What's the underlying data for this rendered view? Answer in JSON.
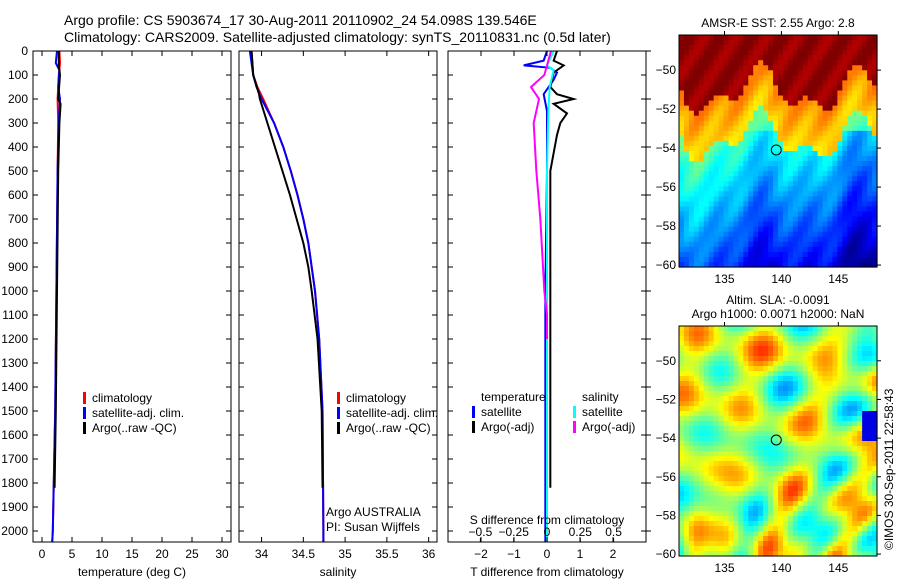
{
  "chart_data": [
    {
      "type": "line",
      "id": "temperature",
      "xlabel": "temperature (deg C)",
      "xlim": [
        -1.5,
        31.5
      ],
      "ylim": [
        0,
        2045
      ],
      "xticks": [
        0,
        5,
        10,
        15,
        20,
        25,
        30
      ],
      "yticks": [
        0,
        100,
        200,
        300,
        400,
        500,
        600,
        700,
        800,
        900,
        1000,
        1100,
        1200,
        1300,
        1400,
        1500,
        1600,
        1700,
        1800,
        1900,
        2000
      ],
      "legend": [
        "climatology",
        "satellite-adj. clim.",
        "Argo(..raw -QC)"
      ],
      "series": [
        {
          "name": "climatology",
          "color": "#ff0000",
          "points": [
            [
              0,
              2.9
            ],
            [
              50,
              3.0
            ],
            [
              100,
              2.8
            ],
            [
              200,
              2.6
            ],
            [
              300,
              2.7
            ],
            [
              500,
              2.6
            ],
            [
              1000,
              2.4
            ],
            [
              1500,
              2.2
            ],
            [
              2000,
              1.8
            ],
            [
              2045,
              1.7
            ]
          ]
        },
        {
          "name": "satellite-adj. clim.",
          "color": "#0000ff",
          "points": [
            [
              0,
              2.5
            ],
            [
              50,
              2.3
            ],
            [
              80,
              2.9
            ],
            [
              150,
              2.7
            ],
            [
              200,
              3.0
            ],
            [
              300,
              2.8
            ],
            [
              500,
              2.6
            ],
            [
              1000,
              2.4
            ],
            [
              1500,
              2.2
            ],
            [
              2000,
              1.8
            ],
            [
              2045,
              1.7
            ]
          ]
        },
        {
          "name": "Argo(..raw -QC)",
          "color": "#000000",
          "points": [
            [
              0,
              2.8
            ],
            [
              60,
              2.8
            ],
            [
              100,
              3.0
            ],
            [
              200,
              2.7
            ],
            [
              220,
              3.1
            ],
            [
              300,
              2.9
            ],
            [
              500,
              2.7
            ],
            [
              1000,
              2.5
            ],
            [
              1500,
              2.3
            ],
            [
              1820,
              2.1
            ]
          ]
        }
      ]
    },
    {
      "type": "line",
      "id": "salinity",
      "xlabel": "salinity",
      "xlim": [
        33.73,
        36.1
      ],
      "ylim": [
        0,
        2045
      ],
      "xticks": [
        34,
        34.5,
        35,
        35.5,
        36
      ],
      "legend": [
        "climatology",
        "satellite-adj. clim.",
        "Argo(..raw -QC)"
      ],
      "annotation": [
        "Argo AUSTRALIA",
        "PI: Susan Wijffels"
      ],
      "series": [
        {
          "name": "climatology",
          "color": "#ff0000",
          "points": [
            [
              0,
              33.88
            ],
            [
              100,
              33.9
            ],
            [
              150,
              33.95
            ],
            [
              200,
              34.02
            ],
            [
              300,
              34.15
            ],
            [
              400,
              34.26
            ],
            [
              500,
              34.35
            ],
            [
              600,
              34.43
            ],
            [
              700,
              34.5
            ],
            [
              800,
              34.56
            ],
            [
              1000,
              34.64
            ],
            [
              1200,
              34.69
            ],
            [
              1500,
              34.73
            ],
            [
              2000,
              34.74
            ],
            [
              2045,
              34.74
            ]
          ]
        },
        {
          "name": "satellite-adj. clim.",
          "color": "#0000ff",
          "points": [
            [
              0,
              33.86
            ],
            [
              100,
              33.9
            ],
            [
              150,
              33.94
            ],
            [
              200,
              34.0
            ],
            [
              300,
              34.15
            ],
            [
              400,
              34.26
            ],
            [
              500,
              34.35
            ],
            [
              600,
              34.43
            ],
            [
              700,
              34.5
            ],
            [
              800,
              34.56
            ],
            [
              1000,
              34.64
            ],
            [
              1200,
              34.69
            ],
            [
              1500,
              34.73
            ],
            [
              2000,
              34.74
            ],
            [
              2045,
              34.74
            ]
          ]
        },
        {
          "name": "Argo(..raw -QC)",
          "color": "#000000",
          "points": [
            [
              0,
              33.88
            ],
            [
              100,
              33.9
            ],
            [
              180,
              33.97
            ],
            [
              200,
              33.98
            ],
            [
              300,
              34.07
            ],
            [
              400,
              34.16
            ],
            [
              500,
              34.25
            ],
            [
              600,
              34.34
            ],
            [
              700,
              34.42
            ],
            [
              800,
              34.5
            ],
            [
              900,
              34.56
            ],
            [
              1000,
              34.6
            ],
            [
              1200,
              34.67
            ],
            [
              1500,
              34.72
            ],
            [
              1820,
              34.73
            ]
          ]
        }
      ]
    },
    {
      "type": "line",
      "id": "difference",
      "xlabel": "T difference from climatology",
      "x2label": "S difference from climatology",
      "xlim": [
        -3,
        3
      ],
      "xticks": [
        -2,
        -1,
        0,
        1,
        2
      ],
      "x2ticks": [
        -0.5,
        -0.25,
        0,
        0.25,
        0.5
      ],
      "ylim": [
        0,
        2045
      ],
      "legend": {
        "temperature": "temperature",
        "salinity": "salinity",
        "items": [
          "satellite",
          "Argo(-adj)",
          "satellite",
          "Argo(-adj)"
        ]
      },
      "series": [
        {
          "name": "T satellite",
          "color": "#0000ff",
          "points": [
            [
              0,
              0
            ],
            [
              40,
              -0.1
            ],
            [
              60,
              -0.7
            ],
            [
              70,
              0.1
            ],
            [
              90,
              0.3
            ],
            [
              120,
              0.2
            ],
            [
              180,
              -0.1
            ],
            [
              250,
              0
            ],
            [
              500,
              0
            ],
            [
              1000,
              -0.05
            ],
            [
              2045,
              -0.05
            ]
          ]
        },
        {
          "name": "T Argo(-adj)",
          "color": "#000000",
          "points": [
            [
              0,
              0.3
            ],
            [
              40,
              0.2
            ],
            [
              60,
              0.5
            ],
            [
              90,
              0.2
            ],
            [
              150,
              0.1
            ],
            [
              180,
              0.3
            ],
            [
              200,
              0.8
            ],
            [
              220,
              0.2
            ],
            [
              260,
              0.6
            ],
            [
              300,
              0.4
            ],
            [
              350,
              0.3
            ],
            [
              500,
              0.1
            ],
            [
              1000,
              0.1
            ],
            [
              1820,
              0.1
            ]
          ]
        },
        {
          "name": "S satellite",
          "color": "#00ffff",
          "points": [
            [
              0,
              0.05
            ],
            [
              60,
              0.0
            ],
            [
              80,
              0.05
            ],
            [
              150,
              0.02
            ],
            [
              250,
              0.01
            ],
            [
              500,
              0
            ],
            [
              1000,
              0.0
            ],
            [
              2045,
              0.0
            ]
          ]
        },
        {
          "name": "S Argo(-adj)",
          "color": "#ff00ff",
          "points": [
            [
              0,
              0.03
            ],
            [
              100,
              -0.02
            ],
            [
              150,
              -0.12
            ],
            [
              200,
              -0.06
            ],
            [
              300,
              -0.1
            ],
            [
              400,
              -0.09
            ],
            [
              500,
              -0.08
            ],
            [
              700,
              -0.05
            ],
            [
              900,
              -0.03
            ],
            [
              1000,
              -0.02
            ],
            [
              1100,
              0
            ],
            [
              1200,
              0
            ]
          ]
        }
      ]
    },
    {
      "type": "heatmap",
      "id": "sst-map",
      "title": "AMSR-E SST: 2.55 Argo: 2.8",
      "xticks": [
        135,
        140,
        145
      ],
      "yticks": [
        -50,
        -52,
        -54,
        -56,
        -58,
        -60
      ],
      "xlim": [
        131,
        148.4
      ],
      "ylim": [
        -60.1,
        -48.2
      ],
      "marker": [
        139.546,
        -54.098
      ]
    },
    {
      "type": "heatmap",
      "id": "sla-map",
      "title": [
        "Altim. SLA: -0.0091",
        "Argo h1000: 0.0071 h2000: NaN"
      ],
      "xticks": [
        135,
        140,
        145
      ],
      "yticks": [
        -50,
        -52,
        -54,
        -56,
        -58,
        -60
      ],
      "xlim": [
        131,
        148.4
      ],
      "ylim": [
        -60.1,
        -48.2
      ],
      "marker": [
        139.546,
        -54.098
      ]
    }
  ],
  "title": [
    "Argo profile: CS 5903674_17 30-Aug-2011 20110902_24 54.098S 139.546E",
    "Climatology: CARS2009. Satellite-adjusted climatology: synTS_20110831.nc (0.5d later)"
  ],
  "watermark": "©IMOS 30-Sep-2011 22:58:43"
}
